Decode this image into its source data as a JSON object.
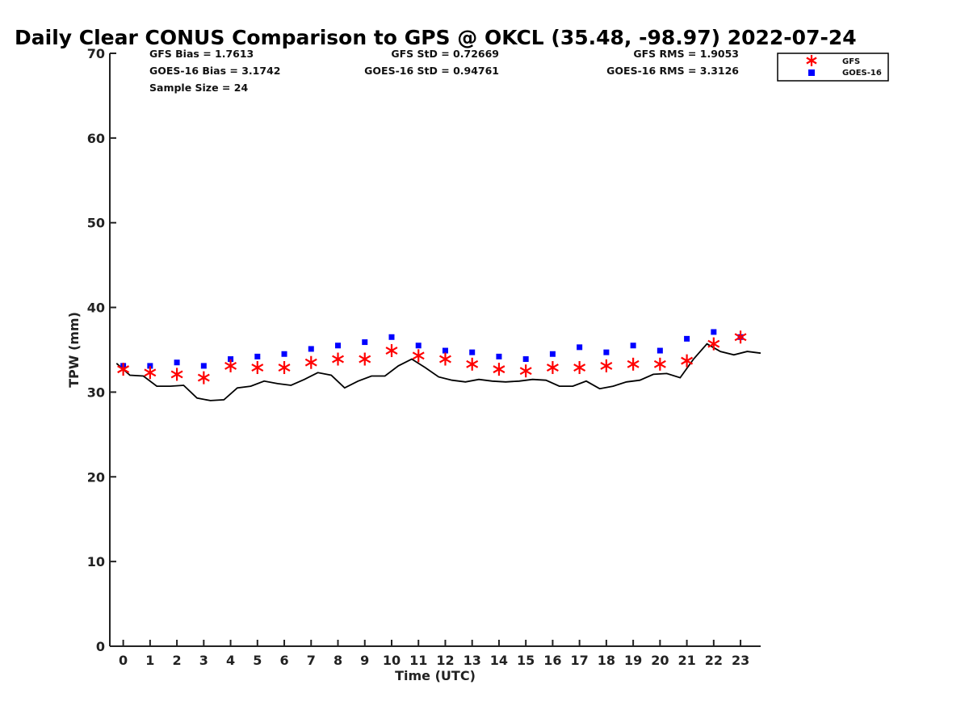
{
  "chart_data": {
    "type": "scatter",
    "title": "Daily Clear CONUS Comparison to GPS @ OKCL (35.48, -98.97) 2022-07-24",
    "xlabel": "Time (UTC)",
    "ylabel": "TPW (mm)",
    "xlim": [
      -0.5,
      23.75
    ],
    "ylim": [
      0,
      70
    ],
    "x_ticks": [
      "0",
      "1",
      "2",
      "3",
      "4",
      "5",
      "6",
      "7",
      "8",
      "9",
      "10",
      "11",
      "12",
      "13",
      "14",
      "15",
      "16",
      "17",
      "18",
      "19",
      "20",
      "21",
      "22",
      "23"
    ],
    "y_ticks": [
      "0",
      "10",
      "20",
      "30",
      "40",
      "50",
      "60",
      "70"
    ],
    "grid": false,
    "legend_position": "top-right, outside plot",
    "legend": [
      "GFS",
      "GOES-16"
    ],
    "stats": {
      "gfs_bias": "GFS Bias = 1.7613",
      "goes_bias": "GOES-16 Bias = 3.1742",
      "sample_size": "Sample Size = 24",
      "gfs_std": "GFS StD = 0.72669",
      "goes_std": "GOES-16 StD = 0.94761",
      "gfs_rms": "GFS RMS = 1.9053",
      "goes_rms": "GOES-16 RMS = 3.3126"
    },
    "series": [
      {
        "name": "GFS",
        "marker": "asterisk",
        "color": "#ff0000",
        "x": [
          0,
          1,
          2,
          3,
          4,
          5,
          6,
          7,
          8,
          9,
          10,
          11,
          12,
          13,
          14,
          15,
          16,
          17,
          18,
          19,
          20,
          21,
          22,
          23
        ],
        "y": [
          32.7,
          32.3,
          32.1,
          31.7,
          33.1,
          32.9,
          32.9,
          33.5,
          33.9,
          33.9,
          34.9,
          34.3,
          33.9,
          33.3,
          32.7,
          32.5,
          32.9,
          32.9,
          33.1,
          33.3,
          33.3,
          33.7,
          35.7,
          36.5
        ]
      },
      {
        "name": "GOES-16",
        "marker": "square",
        "color": "#0000ff",
        "x": [
          0,
          1,
          2,
          3,
          4,
          5,
          6,
          7,
          8,
          9,
          10,
          11,
          12,
          13,
          14,
          15,
          16,
          17,
          18,
          19,
          20,
          21,
          22,
          23
        ],
        "y": [
          33.1,
          33.1,
          33.5,
          33.1,
          33.9,
          34.2,
          34.5,
          35.1,
          35.5,
          35.9,
          36.5,
          35.5,
          34.9,
          34.7,
          34.2,
          33.9,
          34.5,
          35.3,
          34.7,
          35.5,
          34.9,
          36.3,
          37.1,
          36.5
        ]
      },
      {
        "type": "line",
        "color": "#000000",
        "x": [
          -0.25,
          0.25,
          0.75,
          1.25,
          1.75,
          2.25,
          2.75,
          3.25,
          3.75,
          4.25,
          4.75,
          5.25,
          5.75,
          6.25,
          6.75,
          7.25,
          7.75,
          8.25,
          8.75,
          9.25,
          9.75,
          10.25,
          10.75,
          11.25,
          11.75,
          12.25,
          12.75,
          13.25,
          13.75,
          14.25,
          14.75,
          15.25,
          15.75,
          16.25,
          16.75,
          17.25,
          17.75,
          18.25,
          18.75,
          19.25,
          19.75,
          20.25,
          20.75,
          21.25,
          21.75,
          22.25,
          22.75,
          23.25,
          23.75
        ],
        "y": [
          33.4,
          32.0,
          31.9,
          30.7,
          30.7,
          30.8,
          29.3,
          29.0,
          29.1,
          30.5,
          30.7,
          31.3,
          31.0,
          30.8,
          31.5,
          32.3,
          32.0,
          30.5,
          31.3,
          31.9,
          31.9,
          33.1,
          33.9,
          32.9,
          31.8,
          31.4,
          31.2,
          31.5,
          31.3,
          31.2,
          31.3,
          31.5,
          31.4,
          30.7,
          30.7,
          31.3,
          30.4,
          30.7,
          31.2,
          31.4,
          32.1,
          32.2,
          31.7,
          33.9,
          35.7,
          34.8,
          34.4,
          34.8,
          34.6
        ]
      }
    ]
  }
}
